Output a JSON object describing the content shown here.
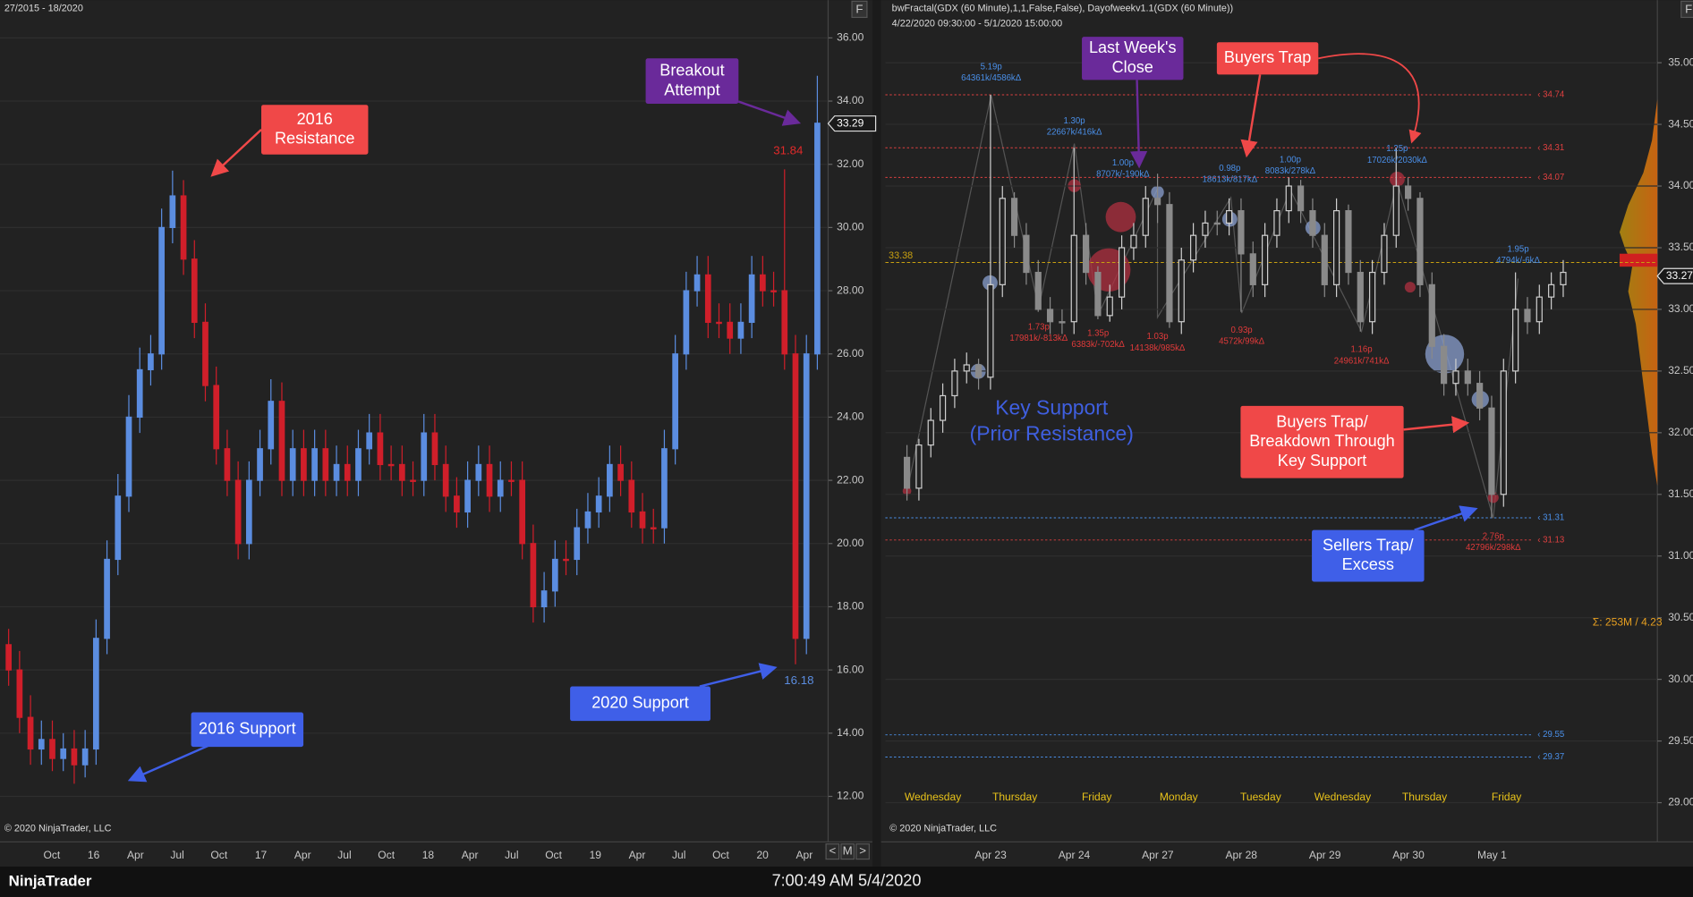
{
  "window": {
    "app": "NinjaTrader",
    "clock": "7:00:49 AM 5/4/2020"
  },
  "chart_data": [
    {
      "type": "candlestick",
      "header": "27/2015 - 18/2020",
      "copyright": "© 2020 NinjaTrader, LLC",
      "button": "F",
      "nav": [
        "<",
        "M",
        ">"
      ],
      "x_labels": [
        "Oct",
        "16",
        "Apr",
        "Jul",
        "Oct",
        "17",
        "Apr",
        "Jul",
        "Oct",
        "18",
        "Apr",
        "Jul",
        "Oct",
        "19",
        "Apr",
        "Jul",
        "Oct",
        "20",
        "Apr"
      ],
      "open": [
        16.8,
        16.0,
        14.5,
        13.5,
        13.8,
        13.2,
        13.5,
        13.0,
        13.5,
        17.0,
        19.5,
        21.5,
        24.0,
        25.5,
        26.0,
        30.0,
        31.0,
        29.0,
        27.0,
        25.0,
        23.0,
        22.0,
        20.0,
        22.0,
        23.0,
        24.5,
        22.0,
        23.0,
        22.0,
        23.0,
        22.0,
        22.5,
        22.0,
        23.0,
        23.5,
        22.5,
        22.5,
        22.0,
        22.0,
        23.5,
        22.5,
        21.5,
        21.0,
        22.0,
        22.5,
        21.5,
        22.0,
        22.0,
        20.0,
        18.0,
        18.5,
        19.5,
        19.5,
        20.5,
        21.0,
        21.5,
        22.5,
        22.0,
        21.0,
        20.5,
        20.5,
        23.0,
        26.0,
        28.0,
        28.5,
        27.0,
        27.0,
        26.5,
        27.0,
        28.5,
        28.0,
        28.0,
        26.0,
        17.0,
        26.0
      ],
      "high": [
        17.3,
        16.6,
        15.2,
        14.4,
        14.4,
        14.0,
        14.1,
        14.1,
        17.6,
        20.1,
        22.2,
        24.7,
        26.2,
        26.6,
        30.6,
        31.8,
        31.5,
        29.6,
        27.6,
        25.6,
        23.6,
        22.6,
        22.6,
        23.6,
        25.2,
        25.1,
        23.6,
        23.6,
        23.6,
        23.6,
        23.1,
        23.1,
        23.6,
        24.1,
        24.1,
        23.1,
        23.1,
        22.6,
        24.1,
        24.1,
        23.1,
        22.1,
        22.6,
        23.1,
        23.1,
        22.6,
        22.6,
        22.6,
        20.6,
        19.1,
        20.1,
        20.1,
        21.1,
        21.6,
        22.1,
        23.1,
        23.1,
        22.6,
        21.6,
        21.1,
        23.6,
        26.6,
        28.6,
        29.1,
        29.1,
        27.6,
        27.6,
        27.6,
        29.1,
        29.1,
        28.6,
        31.84,
        26.6,
        26.6,
        34.8
      ],
      "low": [
        15.5,
        14.0,
        13.0,
        13.0,
        12.8,
        12.8,
        12.4,
        12.6,
        13.0,
        16.5,
        19.0,
        21.0,
        23.5,
        25.0,
        25.5,
        29.5,
        28.5,
        26.5,
        24.5,
        22.5,
        21.5,
        19.5,
        19.5,
        21.5,
        22.5,
        21.5,
        21.5,
        21.5,
        21.5,
        21.5,
        21.5,
        21.5,
        21.5,
        22.5,
        22.0,
        22.0,
        21.5,
        21.5,
        21.5,
        22.0,
        21.0,
        20.5,
        20.5,
        21.5,
        21.0,
        21.0,
        21.5,
        19.5,
        17.5,
        17.5,
        18.0,
        19.0,
        19.0,
        20.0,
        20.5,
        21.0,
        21.5,
        20.5,
        20.0,
        20.0,
        20.0,
        22.5,
        25.5,
        27.5,
        26.5,
        26.5,
        26.0,
        26.0,
        26.5,
        27.5,
        27.5,
        25.5,
        16.18,
        16.5,
        25.5
      ],
      "close": [
        16.0,
        14.5,
        13.5,
        13.8,
        13.2,
        13.5,
        13.0,
        13.5,
        17.0,
        19.5,
        21.5,
        24.0,
        25.5,
        26.0,
        30.0,
        31.0,
        29.0,
        27.0,
        25.0,
        23.0,
        22.0,
        20.0,
        22.0,
        23.0,
        24.5,
        22.0,
        23.0,
        22.0,
        23.0,
        22.0,
        22.5,
        22.0,
        23.0,
        23.5,
        22.5,
        22.5,
        22.0,
        22.0,
        23.5,
        22.5,
        21.5,
        21.0,
        22.0,
        22.5,
        21.5,
        22.0,
        22.0,
        20.0,
        18.0,
        18.5,
        19.5,
        19.5,
        20.5,
        21.0,
        21.5,
        22.5,
        22.0,
        21.0,
        20.5,
        20.5,
        23.0,
        26.0,
        28.0,
        28.5,
        27.0,
        27.0,
        26.5,
        27.0,
        28.5,
        28.0,
        28.0,
        26.0,
        17.0,
        26.0,
        33.3
      ],
      "up_color": "#5b8de0",
      "down_color": "#d01f2a",
      "ylim": [
        10.63,
        36.58
      ],
      "yticks": [
        {
          "value": 12,
          "label": "12.00"
        },
        {
          "value": 14,
          "label": "14.00"
        },
        {
          "value": 16,
          "label": "16.00"
        },
        {
          "value": 18,
          "label": "18.00"
        },
        {
          "value": 20,
          "label": "20.00"
        },
        {
          "value": 22,
          "label": "22.00"
        },
        {
          "value": 24,
          "label": "24.00"
        },
        {
          "value": 26,
          "label": "26.00"
        },
        {
          "value": 28,
          "label": "28.00"
        },
        {
          "value": 30,
          "label": "30.00"
        },
        {
          "value": 32,
          "label": "32.00"
        },
        {
          "value": 34,
          "label": "34.00"
        },
        {
          "value": 36,
          "label": "36.00"
        }
      ],
      "grid": true,
      "last_price": 33.29,
      "price_labels": [
        {
          "value": 31.84,
          "color": "#e02a2a"
        },
        {
          "value": 16.18,
          "color": "#5b8de0"
        }
      ],
      "annotations": [
        {
          "lines": [
            "2016",
            "Resistance"
          ],
          "color": "#f04848"
        },
        {
          "lines": [
            "Breakout",
            "Attempt"
          ],
          "color": "#6a2a9a"
        },
        {
          "lines": [
            "2016 Support"
          ],
          "color": "#3f5fe8"
        },
        {
          "lines": [
            "2020 Support"
          ],
          "color": "#3f5fe8"
        }
      ]
    },
    {
      "type": "candlestick",
      "header": "bwFractal(GDX (60 Minute),1,1,False,False), Dayofweekv1.1(GDX (60 Minute))",
      "subheader": "4/22/2020 09:30:00 - 5/1/2020 15:00:00",
      "copyright": "© 2020 NinjaTrader, LLC",
      "button": "F",
      "x_labels": [
        "Apr 23",
        "Apr 24",
        "Apr 27",
        "Apr 28",
        "Apr 29",
        "Apr 30",
        "May 1"
      ],
      "day_names": [
        "Wednesday",
        "Thursday",
        "Friday",
        "Monday",
        "Tuesday",
        "Wednesday",
        "Thursday",
        "Friday"
      ],
      "open": [
        31.8,
        31.55,
        31.9,
        32.1,
        32.3,
        32.5,
        32.55,
        32.45,
        33.2,
        33.9,
        33.6,
        33.3,
        33.0,
        32.9,
        32.9,
        33.6,
        33.3,
        32.95,
        33.1,
        33.5,
        33.6,
        33.9,
        33.85,
        32.9,
        33.4,
        33.6,
        33.7,
        33.7,
        33.8,
        33.45,
        33.2,
        33.6,
        33.8,
        34.0,
        33.8,
        33.6,
        33.2,
        33.8,
        33.3,
        32.9,
        33.3,
        33.6,
        34.0,
        33.9,
        33.2,
        32.7,
        32.4,
        32.5,
        32.4,
        32.2,
        31.5,
        32.5,
        33.0,
        32.9,
        33.1,
        33.2
      ],
      "high": [
        31.9,
        31.95,
        32.2,
        32.4,
        32.6,
        32.65,
        32.6,
        34.74,
        34.0,
        33.95,
        33.7,
        33.4,
        33.1,
        33.0,
        34.31,
        33.7,
        33.35,
        33.2,
        33.6,
        33.7,
        34.0,
        34.1,
        33.95,
        33.5,
        33.7,
        33.8,
        33.8,
        33.9,
        33.9,
        33.55,
        33.7,
        33.9,
        34.07,
        34.05,
        33.9,
        33.7,
        33.9,
        33.85,
        33.4,
        33.4,
        33.7,
        34.31,
        34.07,
        33.95,
        33.3,
        32.8,
        32.6,
        32.6,
        32.5,
        32.3,
        32.6,
        33.3,
        33.1,
        33.2,
        33.3,
        33.4
      ],
      "low": [
        31.45,
        31.45,
        31.8,
        32.0,
        32.2,
        32.4,
        32.35,
        32.35,
        33.1,
        33.5,
        33.2,
        32.98,
        32.8,
        32.8,
        32.8,
        33.2,
        32.92,
        32.9,
        33.0,
        33.4,
        33.5,
        33.7,
        32.85,
        32.8,
        33.3,
        33.5,
        33.6,
        33.6,
        32.98,
        33.1,
        33.1,
        33.5,
        33.7,
        33.7,
        33.5,
        33.1,
        33.1,
        33.2,
        32.82,
        32.8,
        33.2,
        33.5,
        33.8,
        33.1,
        32.6,
        32.3,
        32.3,
        32.3,
        32.1,
        31.31,
        31.4,
        32.4,
        32.8,
        32.8,
        33.0,
        33.1
      ],
      "close": [
        31.55,
        31.9,
        32.1,
        32.3,
        32.5,
        32.55,
        32.45,
        33.2,
        33.9,
        33.6,
        33.3,
        33.0,
        32.9,
        32.9,
        33.6,
        33.3,
        32.95,
        33.1,
        33.5,
        33.6,
        33.9,
        33.85,
        32.9,
        33.4,
        33.6,
        33.7,
        33.7,
        33.8,
        33.45,
        33.2,
        33.6,
        33.8,
        34.0,
        33.8,
        33.6,
        33.2,
        33.8,
        33.3,
        32.9,
        33.3,
        33.6,
        34.0,
        33.9,
        33.2,
        32.7,
        32.4,
        32.5,
        32.4,
        32.2,
        31.5,
        32.5,
        33.0,
        32.9,
        33.1,
        33.2,
        33.3
      ],
      "up_color": "#cfcfcf",
      "down_color": "#8a8a8a",
      "ylim": [
        28.7,
        35.35
      ],
      "yticks": [
        {
          "value": 29,
          "label": "29.00"
        },
        {
          "value": 29.5,
          "label": "29.50"
        },
        {
          "value": 30,
          "label": "30.00"
        },
        {
          "value": 30.5,
          "label": "30.50"
        },
        {
          "value": 31,
          "label": "31.00"
        },
        {
          "value": 31.5,
          "label": "31.50"
        },
        {
          "value": 32,
          "label": "32.00"
        },
        {
          "value": 32.5,
          "label": "32.50"
        },
        {
          "value": 33,
          "label": "33.00"
        },
        {
          "value": 33.5,
          "label": "33.50"
        },
        {
          "value": 34,
          "label": "34.00"
        },
        {
          "value": 34.5,
          "label": "34.50"
        },
        {
          "value": 35,
          "label": "35.00"
        }
      ],
      "grid": true,
      "last_price": 33.27,
      "close_line": 33.38,
      "volume_text": "Σ: 253M / 4.23",
      "levels": [
        {
          "value": 34.74,
          "label": "‹ 34.74",
          "color": "#e04040"
        },
        {
          "value": 34.31,
          "label": "‹ 34.31",
          "color": "#e04040"
        },
        {
          "value": 34.07,
          "label": "‹ 34.07",
          "color": "#e04040"
        },
        {
          "value": 31.31,
          "label": "‹ 31.31",
          "color": "#4a8fe8"
        },
        {
          "value": 31.13,
          "label": "‹ 31.13",
          "color": "#e04040"
        },
        {
          "value": 29.55,
          "label": "‹ 29.55",
          "color": "#4a8fe8"
        },
        {
          "value": 29.37,
          "label": "‹ 29.37",
          "color": "#4a8fe8"
        }
      ],
      "swing_labels": [
        {
          "lines": [
            "5.19p",
            "64361k/4586kΔ"
          ],
          "color": "#4a8fe8"
        },
        {
          "lines": [
            "1.30p",
            "22667k/416kΔ"
          ],
          "color": "#4a8fe8"
        },
        {
          "lines": [
            "1.00p",
            "8707k/-190kΔ"
          ],
          "color": "#4a8fe8"
        },
        {
          "lines": [
            "0.98p",
            "18613k/817kΔ"
          ],
          "color": "#4a8fe8"
        },
        {
          "lines": [
            "1.00p",
            "8083k/278kΔ"
          ],
          "color": "#4a8fe8"
        },
        {
          "lines": [
            "1.25p",
            "17026k/2030kΔ"
          ],
          "color": "#4a8fe8"
        },
        {
          "lines": [
            "1.95p",
            "4794k/-6kΔ"
          ],
          "color": "#4a8fe8"
        },
        {
          "lines": [
            "1.73p",
            "17981k/-813kΔ"
          ],
          "color": "#e03a3a"
        },
        {
          "lines": [
            "1.35p",
            "6383k/-702kΔ"
          ],
          "color": "#e03a3a"
        },
        {
          "lines": [
            "1.03p",
            "14138k/985kΔ"
          ],
          "color": "#e03a3a"
        },
        {
          "lines": [
            "0.93p",
            "4572k/99kΔ"
          ],
          "color": "#e03a3a"
        },
        {
          "lines": [
            "1.16p",
            "24961k/741kΔ"
          ],
          "color": "#e03a3a"
        },
        {
          "lines": [
            "2.76p",
            "42796k/298kΔ"
          ],
          "color": "#e03a3a"
        }
      ],
      "key_text": {
        "lines": [
          "Key Support",
          "(Prior Resistance)"
        ],
        "color": "#3f5fe0"
      },
      "annotations": [
        {
          "lines": [
            "Last Week's",
            "Close"
          ],
          "color": "#6a2a9a"
        },
        {
          "lines": [
            "Buyers Trap"
          ],
          "color": "#f04848"
        },
        {
          "lines": [
            "Buyers Trap/",
            "Breakdown Through",
            "Key Support"
          ],
          "color": "#f04848"
        },
        {
          "lines": [
            "Sellers Trap/",
            "Excess"
          ],
          "color": "#3f5fe8"
        }
      ]
    }
  ]
}
